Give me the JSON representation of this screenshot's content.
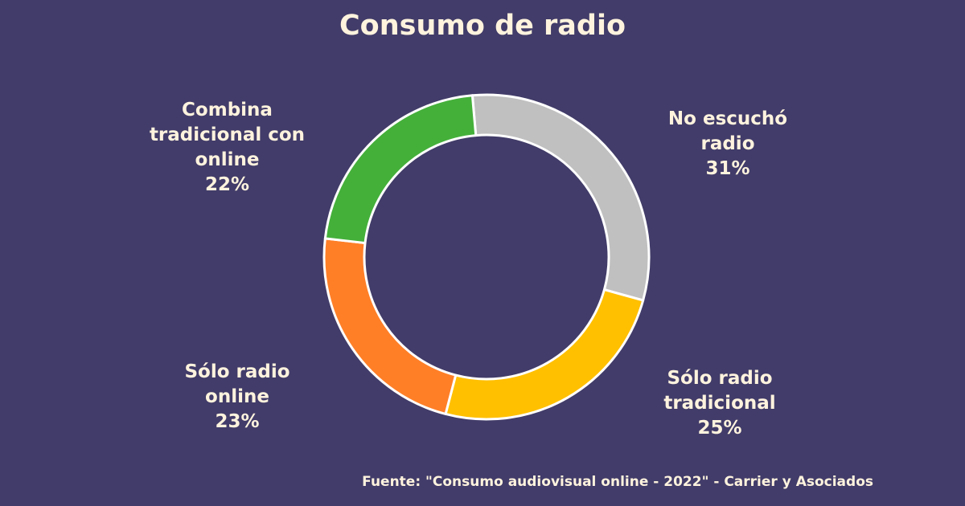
{
  "chart_data": {
    "type": "pie",
    "title": "Consumo de radio",
    "donut": true,
    "slices": [
      {
        "name": "No escuchó radio",
        "value": 31,
        "value_label": "31%",
        "color": "#c0c0c0",
        "label_lines": [
          "No escuchó",
          "radio"
        ]
      },
      {
        "name": "Sólo radio tradicional",
        "value": 25,
        "value_label": "25%",
        "color": "#ffc000",
        "label_lines": [
          "Sólo radio",
          "tradicional"
        ]
      },
      {
        "name": "Sólo radio online",
        "value": 23,
        "value_label": "23%",
        "color": "#ff7f27",
        "label_lines": [
          "Sólo radio",
          "online"
        ]
      },
      {
        "name": "Combina tradicional con online",
        "value": 22,
        "value_label": "22%",
        "color": "#44b03a",
        "label_lines": [
          "Combina",
          "tradicional con",
          "online"
        ]
      }
    ],
    "start_angle_deg": -5,
    "direction": "clockwise",
    "source": "Fuente: \"Consumo audiovisual online - 2022\" - Carrier y Asociados"
  },
  "colors": {
    "background": "#413c69",
    "text": "#fff3de",
    "slice_border": "#ffffff"
  }
}
